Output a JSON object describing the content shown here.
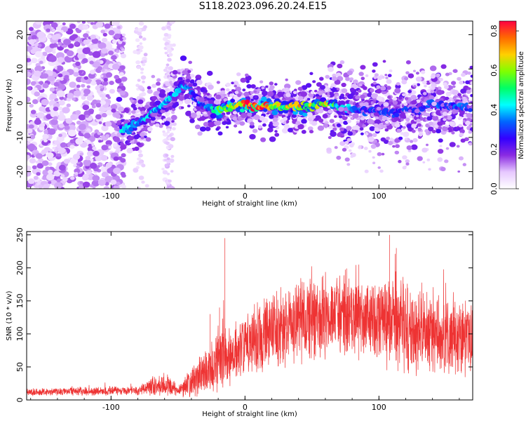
{
  "title": "S118.2023.096.20.24.E15",
  "chart_data": [
    {
      "type": "heatmap",
      "xlabel": "Height of straight line (km)",
      "ylabel": "Frequency (Hz)",
      "xlim": [
        -163,
        170
      ],
      "ylim": [
        -25,
        24
      ],
      "x_ticks": [
        -100,
        0,
        100
      ],
      "y_ticks": [
        -20,
        -10,
        0,
        10,
        20
      ],
      "colorbar": {
        "label": "Normalized spectral amplitude",
        "range": [
          0.0,
          0.85
        ],
        "ticks": [
          "0.0",
          "0.2",
          "0.4",
          "0.6",
          "0.8"
        ],
        "colormap": [
          "#ffffff",
          "#e6c8ff",
          "#8a2be2",
          "#3300ff",
          "#0066ff",
          "#00ffff",
          "#00ff66",
          "#80ff00",
          "#ffd000",
          "#ff6a00",
          "#ff0040"
        ]
      },
      "ridge": {
        "x": [
          -90,
          -80,
          -70,
          -60,
          -52,
          -46,
          -42,
          -38,
          -32,
          -26,
          -20,
          -12,
          0,
          10,
          20,
          30,
          40,
          50,
          60,
          70,
          80,
          90,
          100,
          110,
          120,
          130,
          140,
          150,
          160,
          168
        ],
        "y": [
          -8,
          -6,
          -3,
          0,
          3,
          5,
          5,
          2,
          -1,
          -1,
          -2,
          -1,
          0,
          -1,
          -1,
          -1,
          -1,
          -1,
          0,
          -1,
          -2,
          -2,
          -2,
          -3,
          -2,
          -2,
          0,
          -1,
          -1,
          -1
        ],
        "peak_amplitude": [
          0.45,
          0.4,
          0.42,
          0.4,
          0.45,
          0.4,
          0.35,
          0.3,
          0.35,
          0.4,
          0.55,
          0.7,
          0.8,
          0.85,
          0.7,
          0.6,
          0.75,
          0.6,
          0.7,
          0.45,
          0.4,
          0.3,
          0.3,
          0.3,
          0.3,
          0.3,
          0.35,
          0.3,
          0.35,
          0.3
        ]
      }
    },
    {
      "type": "line",
      "xlabel": "Height of straight line (km)",
      "ylabel": "SNR (10 * v/v)",
      "xlim": [
        -163,
        170
      ],
      "ylim": [
        0,
        255
      ],
      "x_ticks": [
        -100,
        0,
        100
      ],
      "y_ticks": [
        0,
        50,
        100,
        150,
        200,
        250
      ],
      "color": "#ee3333",
      "envelope": {
        "x": [
          -163,
          -80,
          -70,
          -60,
          -50,
          -40,
          -30,
          -20,
          -10,
          0,
          20,
          40,
          60,
          80,
          100,
          120,
          140,
          160,
          170
        ],
        "mean": [
          12,
          14,
          20,
          25,
          15,
          25,
          45,
          55,
          65,
          80,
          105,
          120,
          125,
          130,
          125,
          110,
          100,
          95,
          95
        ],
        "spread": [
          5,
          6,
          12,
          15,
          8,
          20,
          30,
          40,
          40,
          45,
          50,
          55,
          55,
          55,
          60,
          65,
          60,
          55,
          50
        ]
      },
      "spikes": [
        {
          "x": -15,
          "y": 245
        },
        {
          "x": -19,
          "y": 140
        },
        {
          "x": -26,
          "y": 130
        },
        {
          "x": 108,
          "y": 250
        },
        {
          "x": 113,
          "y": 230
        },
        {
          "x": 85,
          "y": 205
        }
      ]
    }
  ]
}
